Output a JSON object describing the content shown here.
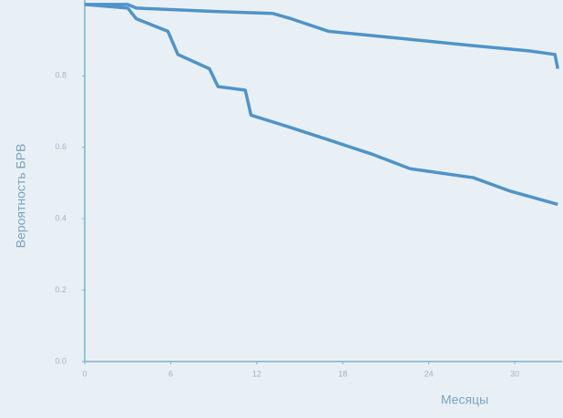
{
  "chart_data": {
    "type": "line",
    "xlabel": "Месяцы",
    "ylabel": "Вероятность БРВ",
    "series": [
      {
        "color": "#4f93c8",
        "x": [
          0,
          3,
          3.6,
          9.3,
          13.1,
          14.4,
          17,
          22,
          27,
          31,
          32.8,
          33
        ],
        "values": [
          1.0,
          1.0,
          0.99,
          0.98,
          0.975,
          0.96,
          0.925,
          0.905,
          0.885,
          0.87,
          0.86,
          0.82
        ]
      },
      {
        "color": "#4f93c8",
        "x": [
          0,
          3,
          3.6,
          5.8,
          6.5,
          8.7,
          9.3,
          11.2,
          11.6,
          14.4,
          17.3,
          20.1,
          22.7,
          27.1,
          29.7,
          33
        ],
        "values": [
          1.0,
          0.99,
          0.96,
          0.925,
          0.86,
          0.82,
          0.77,
          0.76,
          0.69,
          0.655,
          0.617,
          0.58,
          0.54,
          0.515,
          0.477,
          0.44
        ]
      }
    ],
    "xlim": [
      0,
      33.3
    ],
    "ylim": [
      0,
      1.01
    ],
    "xticks": [
      0,
      6,
      12,
      18,
      24,
      30
    ],
    "yticks": [
      {
        "value": 0,
        "label": "0.0"
      },
      0.2,
      0.4,
      0.6,
      0.8
    ],
    "axis_color": "#7fb0d0"
  }
}
